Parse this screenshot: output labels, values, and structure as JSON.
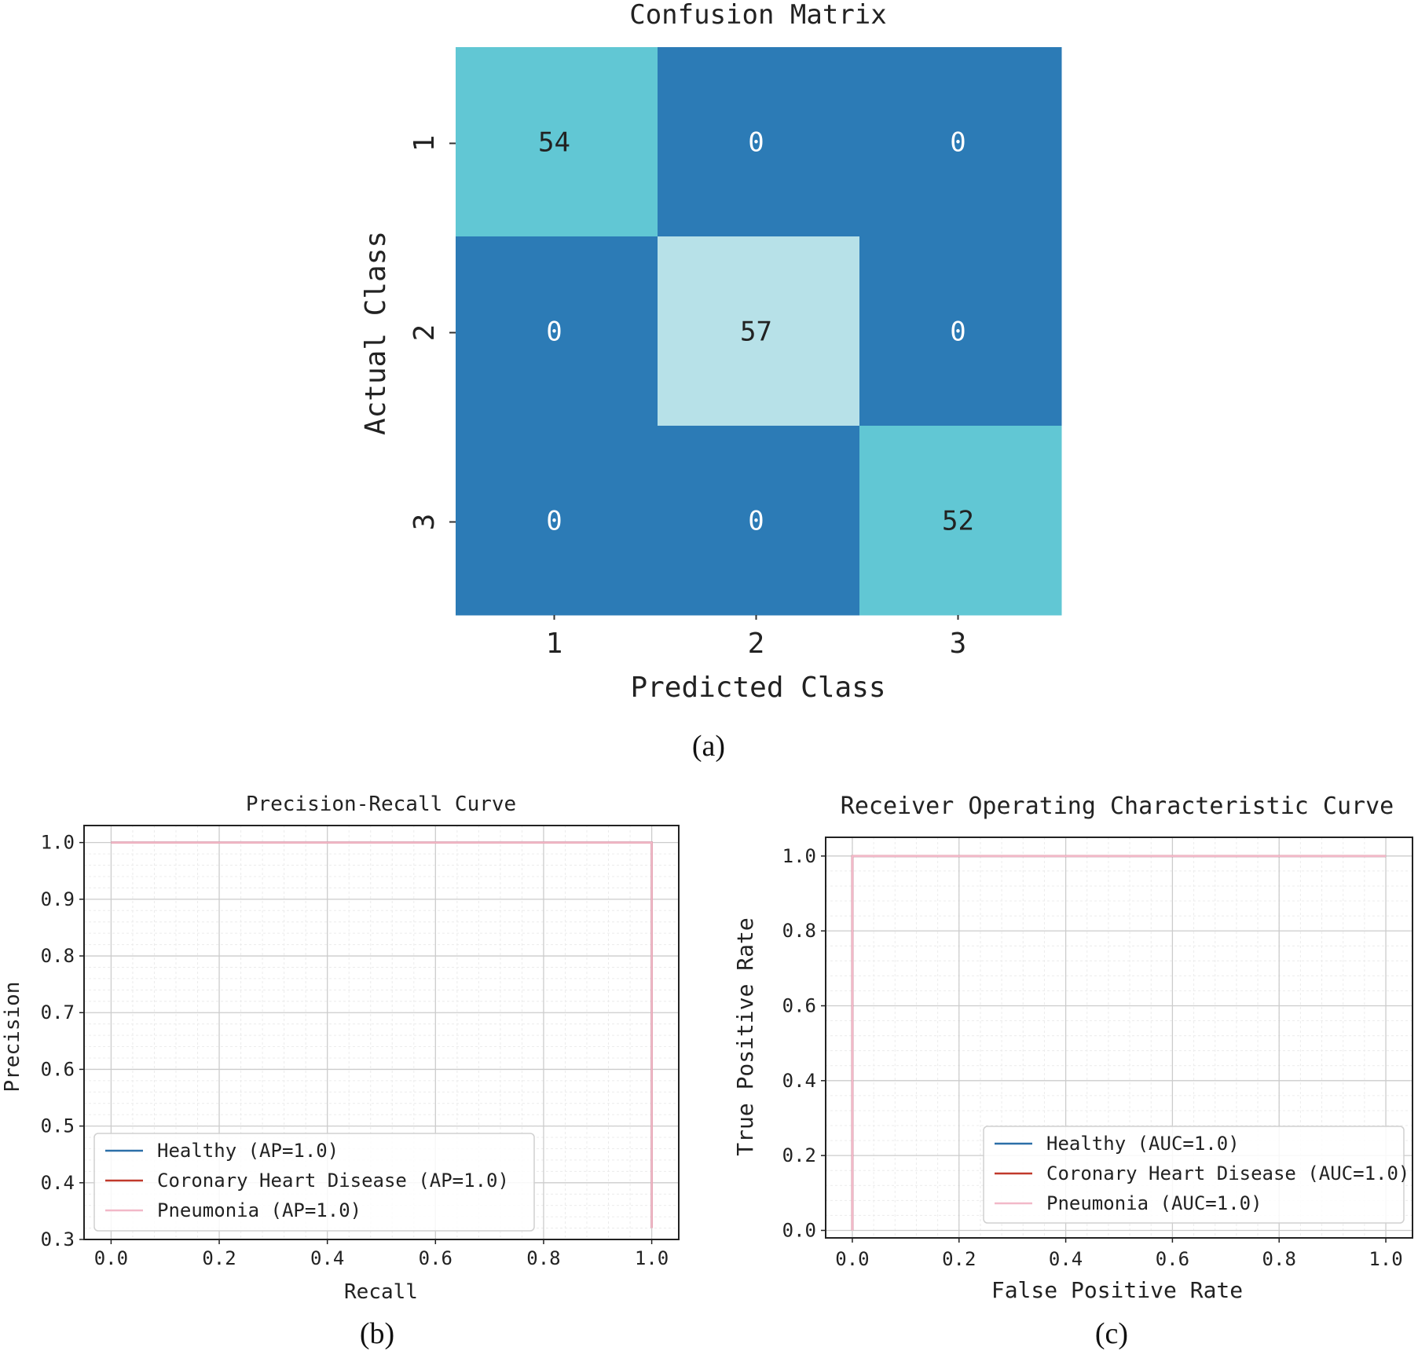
{
  "colors": {
    "cm_high": "#b7e1e8",
    "cm_mid": "#61c7d4",
    "cm_low": "#2c7bb6",
    "healthy": "#2c6fa8",
    "coronary": "#c0392b",
    "pneumonia": "#f2b8c8",
    "grid_major": "#cccccc",
    "grid_minor": "#ececec",
    "axis": "#222222"
  },
  "chart_data": [
    {
      "type": "heatmap",
      "title": "Confusion Matrix",
      "xlabel": "Predicted Class",
      "ylabel": "Actual Class",
      "x_tick_labels": [
        "1",
        "2",
        "3"
      ],
      "y_tick_labels": [
        "1",
        "2",
        "3"
      ],
      "matrix": [
        [
          54,
          0,
          0
        ],
        [
          0,
          57,
          0
        ],
        [
          0,
          0,
          52
        ]
      ],
      "caption": "(a)"
    },
    {
      "type": "line",
      "title": "Precision-Recall Curve",
      "xlabel": "Recall",
      "ylabel": "Precision",
      "xlim": [
        -0.05,
        1.05
      ],
      "ylim": [
        0.3,
        1.03
      ],
      "x_ticks": [
        "0.0",
        "0.2",
        "0.4",
        "0.6",
        "0.8",
        "1.0"
      ],
      "y_ticks": [
        "0.3",
        "0.4",
        "0.5",
        "0.6",
        "0.7",
        "0.8",
        "0.9",
        "1.0"
      ],
      "legend_position": "lower-left",
      "series": [
        {
          "name": "Healthy (AP=1.0)",
          "x": [
            0.0,
            1.0,
            1.0
          ],
          "y": [
            1.0,
            1.0,
            0.32
          ]
        },
        {
          "name": "Coronary Heart Disease (AP=1.0)",
          "x": [
            0.0,
            1.0,
            1.0
          ],
          "y": [
            1.0,
            1.0,
            0.32
          ]
        },
        {
          "name": "Pneumonia (AP=1.0)",
          "x": [
            0.0,
            1.0,
            1.0
          ],
          "y": [
            1.0,
            1.0,
            0.32
          ]
        }
      ],
      "caption": "(b)"
    },
    {
      "type": "line",
      "title": "Receiver Operating Characteristic Curve",
      "xlabel": "False Positive Rate",
      "ylabel": "True Positive Rate",
      "xlim": [
        -0.05,
        1.05
      ],
      "ylim": [
        -0.02,
        1.05
      ],
      "x_ticks": [
        "0.0",
        "0.2",
        "0.4",
        "0.6",
        "0.8",
        "1.0"
      ],
      "y_ticks": [
        "0.0",
        "0.2",
        "0.4",
        "0.6",
        "0.8",
        "1.0"
      ],
      "legend_position": "lower-right",
      "series": [
        {
          "name": "Healthy (AUC=1.0)",
          "x": [
            0.0,
            0.0,
            1.0
          ],
          "y": [
            0.0,
            1.0,
            1.0
          ]
        },
        {
          "name": "Coronary Heart Disease (AUC=1.0)",
          "x": [
            0.0,
            0.0,
            1.0
          ],
          "y": [
            0.0,
            1.0,
            1.0
          ]
        },
        {
          "name": "Pneumonia (AUC=1.0)",
          "x": [
            0.0,
            0.0,
            1.0
          ],
          "y": [
            0.0,
            1.0,
            1.0
          ]
        }
      ],
      "caption": "(c)"
    }
  ]
}
